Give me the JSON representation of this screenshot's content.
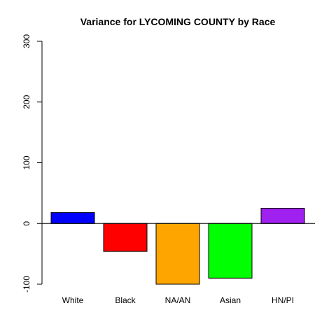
{
  "chart_data": {
    "type": "bar",
    "title": "Variance for LYCOMING COUNTY by Race",
    "xlabel": "",
    "ylabel": "",
    "categories": [
      "White",
      "Black",
      "NA/AN",
      "Asian",
      "HN/PI"
    ],
    "values": [
      18,
      -46,
      -100,
      -90,
      25
    ],
    "colors": [
      "#0000ff",
      "#ff0000",
      "#ffa500",
      "#00ff00",
      "#a020f0"
    ],
    "ylim": [
      -100,
      300
    ],
    "yticks": [
      -100,
      0,
      100,
      200,
      300
    ],
    "ytick_labels": [
      "-100",
      "0",
      "100",
      "200",
      "300"
    ],
    "baseline": 0,
    "grid": false,
    "legend": "none"
  }
}
